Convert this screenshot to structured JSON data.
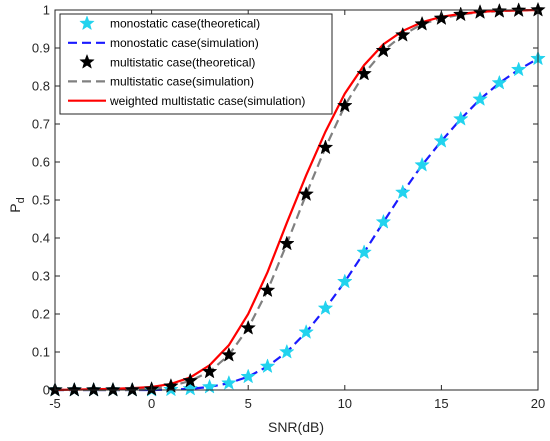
{
  "chart_data": {
    "type": "line",
    "xlabel": "SNR(dB)",
    "ylabel": "P",
    "ylabel_subscript": "d",
    "xlim": [
      -5,
      20
    ],
    "ylim": [
      0,
      1
    ],
    "xticks": [
      -5,
      0,
      5,
      10,
      15,
      20
    ],
    "yticks": [
      0,
      0.1,
      0.2,
      0.3,
      0.4,
      0.5,
      0.6,
      0.7,
      0.8,
      0.9,
      1
    ],
    "grid": false,
    "legend_position": "top-left",
    "series": [
      {
        "name": "monostatic case(theoretical)",
        "style": "marker",
        "marker": "star",
        "color": "#22d3ee",
        "x": [
          -5,
          -4,
          -3,
          -2,
          -1,
          0,
          1,
          2,
          3,
          4,
          5,
          6,
          7,
          8,
          9,
          10,
          11,
          12,
          13,
          14,
          15,
          16,
          17,
          18,
          19,
          20
        ],
        "y": [
          0,
          0,
          0,
          0,
          0,
          0,
          0.001,
          0.003,
          0.008,
          0.018,
          0.035,
          0.062,
          0.1,
          0.152,
          0.215,
          0.285,
          0.362,
          0.442,
          0.52,
          0.592,
          0.655,
          0.713,
          0.765,
          0.808,
          0.843,
          0.872
        ]
      },
      {
        "name": "monostatic case(simulation)",
        "style": "dashed",
        "color": "#1a1aff",
        "x": [
          -5,
          -4,
          -3,
          -2,
          -1,
          0,
          1,
          2,
          3,
          4,
          5,
          6,
          7,
          8,
          9,
          10,
          11,
          12,
          13,
          14,
          15,
          16,
          17,
          18,
          19,
          20
        ],
        "y": [
          0,
          0,
          0,
          0,
          0,
          0,
          0.001,
          0.003,
          0.008,
          0.018,
          0.035,
          0.062,
          0.1,
          0.152,
          0.215,
          0.285,
          0.362,
          0.442,
          0.52,
          0.592,
          0.655,
          0.713,
          0.765,
          0.808,
          0.843,
          0.872
        ]
      },
      {
        "name": "multistatic case(theoretical)",
        "style": "marker",
        "marker": "star",
        "color": "#000000",
        "x": [
          -5,
          -4,
          -3,
          -2,
          -1,
          0,
          1,
          2,
          3,
          4,
          5,
          6,
          7,
          8,
          9,
          10,
          11,
          12,
          13,
          14,
          15,
          16,
          17,
          18,
          19,
          20
        ],
        "y": [
          0,
          0,
          0,
          0,
          0,
          0.002,
          0.01,
          0.024,
          0.048,
          0.092,
          0.163,
          0.262,
          0.385,
          0.515,
          0.638,
          0.748,
          0.832,
          0.893,
          0.934,
          0.963,
          0.978,
          0.988,
          0.994,
          0.997,
          0.999,
          1.0
        ]
      },
      {
        "name": "multistatic case(simulation)",
        "style": "dashed",
        "color": "#808080",
        "x": [
          -5,
          -4,
          -3,
          -2,
          -1,
          0,
          1,
          2,
          3,
          4,
          5,
          6,
          7,
          8,
          9,
          10,
          11,
          12,
          13,
          14,
          15,
          16,
          17,
          18,
          19,
          20
        ],
        "y": [
          0,
          0,
          0,
          0,
          0,
          0.002,
          0.01,
          0.024,
          0.048,
          0.092,
          0.163,
          0.262,
          0.385,
          0.515,
          0.638,
          0.748,
          0.832,
          0.893,
          0.934,
          0.963,
          0.978,
          0.988,
          0.994,
          0.997,
          0.999,
          1.0
        ]
      },
      {
        "name": "weighted multistatic case(simulation)",
        "style": "solid",
        "color": "#ff0000",
        "x": [
          -5,
          -4,
          -3,
          -2,
          -1,
          0,
          1,
          2,
          3,
          4,
          5,
          6,
          7,
          8,
          9,
          10,
          11,
          12,
          13,
          14,
          15,
          16,
          17,
          18,
          19,
          20
        ],
        "y": [
          0,
          0.001,
          0.002,
          0.003,
          0.005,
          0.008,
          0.016,
          0.033,
          0.065,
          0.118,
          0.2,
          0.31,
          0.44,
          0.565,
          0.68,
          0.78,
          0.855,
          0.91,
          0.945,
          0.968,
          0.982,
          0.99,
          0.995,
          0.998,
          0.999,
          1.0
        ]
      }
    ]
  }
}
